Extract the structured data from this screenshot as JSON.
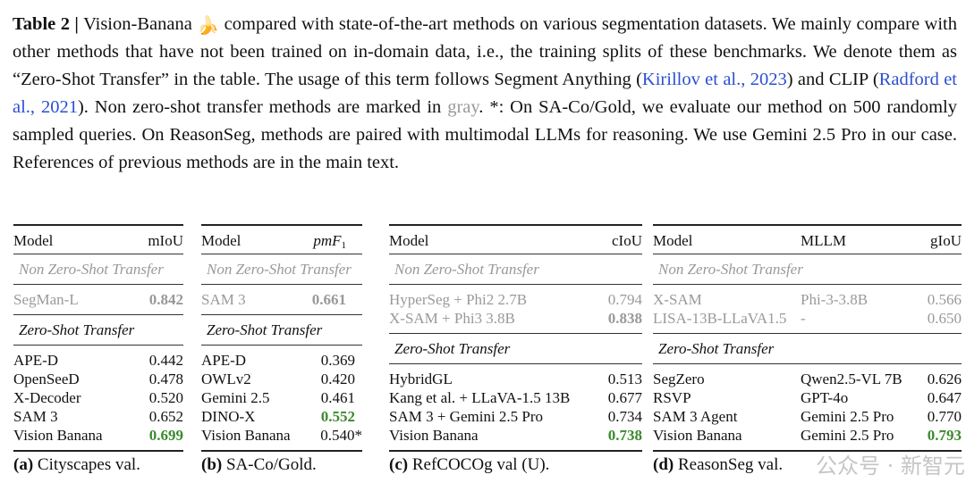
{
  "caption": {
    "label": "Table 2 |",
    "model_name": "Vision-Banana",
    "icon": "banana-icon",
    "text1": " compared with state-of-the-art methods on various segmentation datasets. We mainly compare with other methods that have not been trained on in-domain data, i.e., the training splits of these benchmarks. We denote them as “Zero-Shot Transfer” in the table. The usage of this term follows Segment Anything (",
    "ref1": "Kirillov et al., 2023",
    "text2": ") and CLIP (",
    "ref2": "Radford et al., 2021",
    "text3": "). Non zero-shot transfer methods are marked in ",
    "gray_word": "gray",
    "text4": ". *: On SA-Co/Gold, we evaluate our method on 500 randomly sampled queries. On ReasonSeg, methods are paired with multimodal LLMs for reasoning. We use Gemini 2.5 Pro in our case. References of previous methods are in the main text."
  },
  "colors": {
    "link": "#2a4fd0",
    "gray": "#999999",
    "best": "#3b8a2d"
  },
  "sections": {
    "non_zs": "Non Zero-Shot Transfer",
    "zs": "Zero-Shot Transfer"
  },
  "tables": [
    {
      "id": "a",
      "caption_label": "(a)",
      "caption": "Cityscapes val.",
      "headers": [
        "Model",
        "mIoU"
      ],
      "non_zs": [
        [
          "SegMan-L",
          "0.842"
        ]
      ],
      "zs": [
        [
          "APE-D",
          "0.442"
        ],
        [
          "OpenSeeD",
          "0.478"
        ],
        [
          "X-Decoder",
          "0.520"
        ],
        [
          "SAM 3",
          "0.652"
        ],
        [
          "Vision Banana",
          "0.699"
        ]
      ]
    },
    {
      "id": "b",
      "caption_label": "(b)",
      "caption": "SA-Co/Gold.",
      "headers": [
        "Model",
        "pmF",
        "1"
      ],
      "non_zs": [
        [
          "SAM 3",
          "0.661"
        ]
      ],
      "zs": [
        [
          "APE-D",
          "0.369"
        ],
        [
          "OWLv2",
          "0.420"
        ],
        [
          "Gemini 2.5",
          "0.461"
        ],
        [
          "DINO-X",
          "0.552"
        ],
        [
          "Vision Banana",
          "0.540*"
        ]
      ]
    },
    {
      "id": "c",
      "caption_label": "(c)",
      "caption": "RefCOCOg val (U).",
      "headers": [
        "Model",
        "cIoU"
      ],
      "non_zs": [
        [
          "HyperSeg + Phi2 2.7B",
          "0.794"
        ],
        [
          "X-SAM + Phi3 3.8B",
          "0.838"
        ]
      ],
      "zs": [
        [
          "HybridGL",
          "0.513"
        ],
        [
          "Kang et al. + LLaVA-1.5 13B",
          "0.677"
        ],
        [
          "SAM 3 + Gemini 2.5 Pro",
          "0.734"
        ],
        [
          "Vision Banana",
          "0.738"
        ]
      ]
    },
    {
      "id": "d",
      "caption_label": "(d)",
      "caption": "ReasonSeg val.",
      "headers": [
        "Model",
        "MLLM",
        "gIoU"
      ],
      "non_zs": [
        [
          "X-SAM",
          "Phi-3-3.8B",
          "0.566"
        ],
        [
          "LISA-13B-LLaVA1.5",
          "-",
          "0.650"
        ]
      ],
      "zs": [
        [
          "SegZero",
          "Qwen2.5-VL 7B",
          "0.626"
        ],
        [
          "RSVP",
          "GPT-4o",
          "0.647"
        ],
        [
          "SAM 3 Agent",
          "Gemini 2.5 Pro",
          "0.770"
        ],
        [
          "Vision Banana",
          "Gemini 2.5 Pro",
          "0.793"
        ]
      ]
    }
  ],
  "watermark": "公众号 · 新智元"
}
